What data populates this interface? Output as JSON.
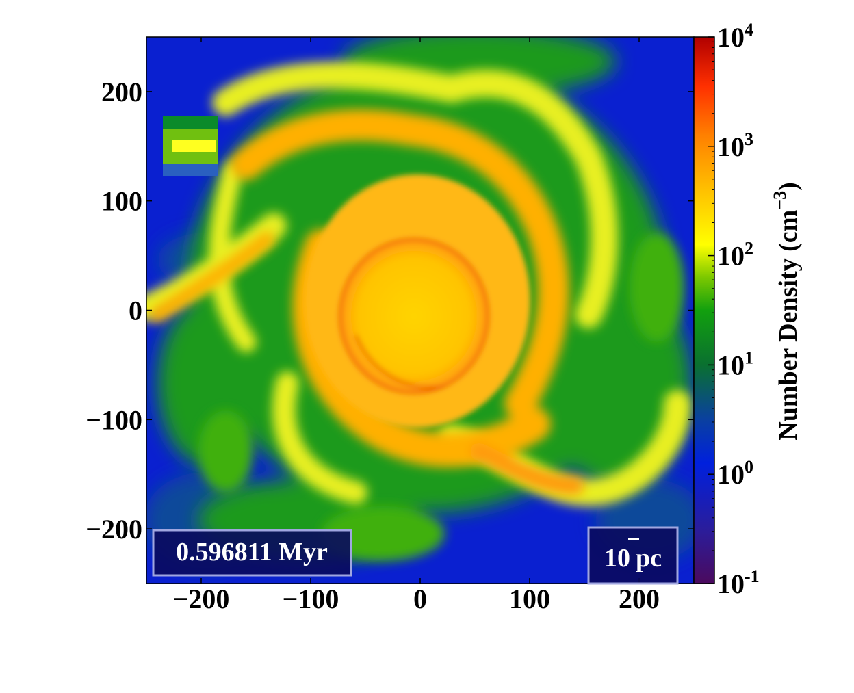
{
  "chart_data": {
    "type": "heatmap",
    "title": "",
    "xlabel": "",
    "ylabel": "",
    "xlim": [
      -250,
      250
    ],
    "ylim": [
      -250,
      250
    ],
    "x_ticks": [
      -200,
      -100,
      0,
      100,
      200
    ],
    "y_ticks": [
      -200,
      -100,
      0,
      100,
      200
    ],
    "x_tick_labels": [
      "−200",
      "−100",
      "0",
      "100",
      "200"
    ],
    "y_tick_labels": [
      "−200",
      "−100",
      "0",
      "100",
      "200"
    ],
    "colorbar": {
      "label": "Number Density (cm",
      "label_exponent": "−3",
      "label_close": ")",
      "scale": "log",
      "range": [
        0.1,
        10000
      ],
      "ticks": [
        {
          "value": 0.1,
          "base": "10",
          "exp": "-1"
        },
        {
          "value": 1,
          "base": "10",
          "exp": "0"
        },
        {
          "value": 10,
          "base": "10",
          "exp": "1"
        },
        {
          "value": 100,
          "base": "10",
          "exp": "2"
        },
        {
          "value": 1000,
          "base": "10",
          "exp": "3"
        },
        {
          "value": 10000,
          "base": "10",
          "exp": "4"
        }
      ]
    },
    "annotations": {
      "time": "0.596811 Myr",
      "scale_bar_value": "10",
      "scale_bar_unit": "pc"
    }
  }
}
